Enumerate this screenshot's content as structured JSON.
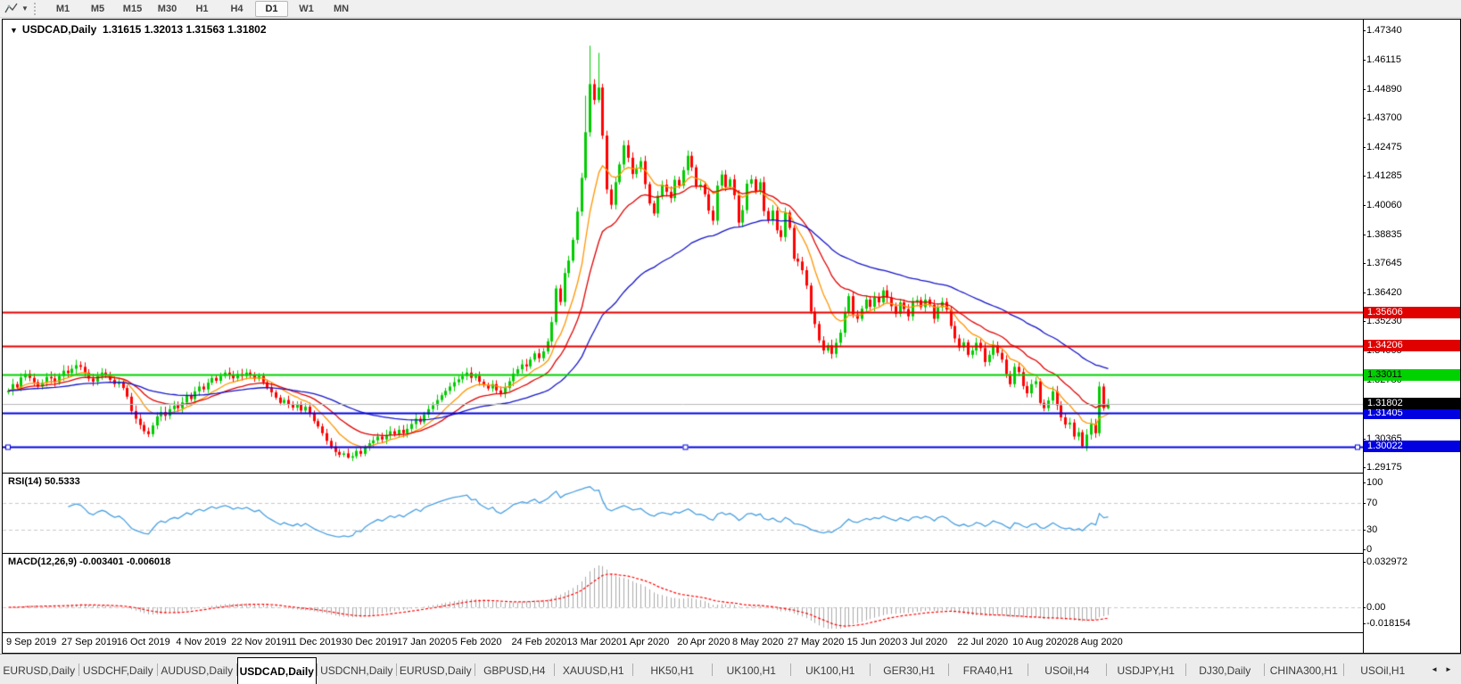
{
  "toolbar": {
    "timeframes": [
      {
        "label": "M1",
        "active": false
      },
      {
        "label": "M5",
        "active": false
      },
      {
        "label": "M15",
        "active": false
      },
      {
        "label": "M30",
        "active": false
      },
      {
        "label": "H1",
        "active": false
      },
      {
        "label": "H4",
        "active": false
      },
      {
        "label": "D1",
        "active": true
      },
      {
        "label": "W1",
        "active": false
      },
      {
        "label": "MN",
        "active": false
      }
    ]
  },
  "title_bar": {
    "dropdown_glyph": "▼",
    "symbol": "USDCAD,Daily",
    "open": "1.31615",
    "high": "1.32013",
    "low": "1.31563",
    "close": "1.31802"
  },
  "indicators": {
    "rsi_name": "RSI(14)",
    "rsi_value": "50.5333",
    "macd_name": "MACD(12,26,9)",
    "macd_values": "-0.003401 -0.006018"
  },
  "colors": {
    "candle_up": "#00cc00",
    "candle_down": "#ff0000",
    "ma_fast": "#ff9500",
    "ma_mid": "#e00000",
    "ma_slow": "#1414c8",
    "rsi_line": "#4aa0e0",
    "macd_hist": "#aaaaaa",
    "macd_signal": "#ff0000",
    "level_dash": "#c8c8c8",
    "current_price_line": "#b8b8b8"
  },
  "chart_data": {
    "type": "candlestick",
    "symbol": "USDCAD",
    "timeframe": "Daily",
    "quote": {
      "open": 1.31615,
      "high": 1.32013,
      "low": 1.31563,
      "close": 1.31802
    },
    "price_axis_ticks": [
      1.4734,
      1.46115,
      1.4489,
      1.437,
      1.42475,
      1.41285,
      1.4006,
      1.38835,
      1.37645,
      1.3642,
      1.3523,
      1.34005,
      1.3278,
      1.30365,
      1.29175
    ],
    "rsi_axis_ticks": [
      100,
      70,
      30,
      0
    ],
    "rsi_levels": [
      70,
      30
    ],
    "macd_axis_ticks": [
      0.032972,
      0.0,
      -0.018154
    ],
    "price_range": {
      "top": 1.4734,
      "bottom": 1.29175
    },
    "x_labels": [
      {
        "t": "9 Sep 2019",
        "i": 0
      },
      {
        "t": "27 Sep 2019",
        "i": 13
      },
      {
        "t": "16 Oct 2019",
        "i": 26
      },
      {
        "t": "4 Nov 2019",
        "i": 40
      },
      {
        "t": "22 Nov 2019",
        "i": 53
      },
      {
        "t": "11 Dec 2019",
        "i": 66
      },
      {
        "t": "30 Dec 2019",
        "i": 79
      },
      {
        "t": "17 Jan 2020",
        "i": 92
      },
      {
        "t": "5 Feb 2020",
        "i": 105
      },
      {
        "t": "24 Feb 2020",
        "i": 119
      },
      {
        "t": "13 Mar 2020",
        "i": 132
      },
      {
        "t": "1 Apr 2020",
        "i": 145
      },
      {
        "t": "20 Apr 2020",
        "i": 158
      },
      {
        "t": "8 May 2020",
        "i": 171
      },
      {
        "t": "27 May 2020",
        "i": 184
      },
      {
        "t": "15 Jun 2020",
        "i": 198
      },
      {
        "t": "3 Jul 2020",
        "i": 211
      },
      {
        "t": "22 Jul 2020",
        "i": 224
      },
      {
        "t": "10 Aug 2020",
        "i": 237
      },
      {
        "t": "28 Aug 2020",
        "i": 250
      }
    ],
    "first_open": 1.3228,
    "closes": [
      1.3235,
      1.3262,
      1.3248,
      1.329,
      1.3305,
      1.3288,
      1.327,
      1.3252,
      1.3268,
      1.3292,
      1.3286,
      1.327,
      1.3296,
      1.3318,
      1.3308,
      1.3326,
      1.3341,
      1.3334,
      1.331,
      1.3285,
      1.3272,
      1.3296,
      1.331,
      1.3302,
      1.328,
      1.3262,
      1.327,
      1.3246,
      1.321,
      1.315,
      1.3118,
      1.3092,
      1.3066,
      1.3054,
      1.309,
      1.3128,
      1.3146,
      1.313,
      1.3158,
      1.3172,
      1.3162,
      1.3186,
      1.3214,
      1.32,
      1.3232,
      1.3252,
      1.324,
      1.3268,
      1.3288,
      1.3276,
      1.3296,
      1.331,
      1.33,
      1.3286,
      1.3304,
      1.3296,
      1.331,
      1.3298,
      1.3284,
      1.3296,
      1.327,
      1.3248,
      1.3228,
      1.3206,
      1.3184,
      1.3196,
      1.3178,
      1.3164,
      1.3176,
      1.3152,
      1.3168,
      1.314,
      1.3108,
      1.3086,
      1.3058,
      1.3026,
      1.3002,
      1.298,
      1.2968,
      1.2974,
      1.2956,
      1.2962,
      1.2984,
      1.2972,
      1.2998,
      1.3016,
      1.3028,
      1.3044,
      1.3032,
      1.305,
      1.3066,
      1.3054,
      1.3072,
      1.3058,
      1.3076,
      1.3096,
      1.3118,
      1.3104,
      1.3136,
      1.3158,
      1.3174,
      1.3196,
      1.3216,
      1.3234,
      1.3252,
      1.327,
      1.3282,
      1.3296,
      1.331,
      1.3288,
      1.3296,
      1.3272,
      1.3258,
      1.3244,
      1.3262,
      1.3236,
      1.3224,
      1.3246,
      1.3274,
      1.3306,
      1.3324,
      1.3344,
      1.3336,
      1.3364,
      1.339,
      1.337,
      1.3398,
      1.344,
      1.352,
      1.366,
      1.3604,
      1.3724,
      1.3776,
      1.3862,
      1.398,
      1.412,
      1.431,
      1.451,
      1.4444,
      1.4496,
      1.4296,
      1.4072,
      1.4008,
      1.4102,
      1.4176,
      1.4256,
      1.4204,
      1.4136,
      1.4158,
      1.419,
      1.4094,
      1.4014,
      1.3972,
      1.4046,
      1.4092,
      1.4062,
      1.4036,
      1.4112,
      1.4088,
      1.4152,
      1.4212,
      1.4164,
      1.4084,
      1.4092,
      1.4052,
      1.3984,
      1.3942,
      1.4088,
      1.4134,
      1.4082,
      1.4114,
      1.4048,
      1.3934,
      1.3986,
      1.4096,
      1.4114,
      1.4064,
      1.4102,
      1.3982,
      1.3944,
      1.3984,
      1.3902,
      1.3874,
      1.3976,
      1.3912,
      1.3784,
      1.3772,
      1.3736,
      1.3672,
      1.3564,
      1.3512,
      1.3444,
      1.3402,
      1.3424,
      1.3388,
      1.3434,
      1.3476,
      1.3562,
      1.3628,
      1.3552,
      1.3534,
      1.3576,
      1.3614,
      1.3584,
      1.3624,
      1.3602,
      1.3652,
      1.3622,
      1.3586,
      1.3554,
      1.3602,
      1.3574,
      1.3544,
      1.3602,
      1.3612,
      1.3582,
      1.3614,
      1.3592,
      1.3534,
      1.3582,
      1.3604,
      1.3572,
      1.3504,
      1.3452,
      1.3414,
      1.3436,
      1.3384,
      1.3402,
      1.3434,
      1.3412,
      1.3354,
      1.3384,
      1.3424,
      1.3392,
      1.3364,
      1.3304,
      1.3262,
      1.3334,
      1.3312,
      1.3254,
      1.3224,
      1.3262,
      1.3274,
      1.3184,
      1.3162,
      1.3194,
      1.3232,
      1.3174,
      1.3124,
      1.3094,
      1.3102,
      1.3044,
      1.3062,
      1.3004,
      1.3052,
      1.3096,
      1.3058,
      1.3252,
      1.3162,
      1.31802
    ],
    "wick_overrides": {
      "33": {
        "l": 1.3042
      },
      "80": {
        "l": 1.2952
      },
      "136": {
        "h": 1.4462
      },
      "137": {
        "h": 1.467
      },
      "139": {
        "h": 1.464
      },
      "253": {
        "l": 1.2996
      },
      "257": {
        "h": 1.3272
      }
    },
    "moving_averages": [
      {
        "name": "fast-ma",
        "period": 10,
        "color": "#ff9500"
      },
      {
        "name": "mid-ma",
        "period": 21,
        "color": "#e00000"
      },
      {
        "name": "slow-ma",
        "period": 55,
        "color": "#1414c8"
      }
    ],
    "hlines": [
      {
        "price": 1.35606,
        "label": "1.35606",
        "color": "#e00000",
        "label_bg": "#e00000",
        "label_fg": "#ffffff",
        "selected": false
      },
      {
        "price": 1.34206,
        "label": "1.34206",
        "color": "#e00000",
        "label_bg": "#e00000",
        "label_fg": "#ffffff",
        "selected": false
      },
      {
        "price": 1.33011,
        "label": "1.33011",
        "color": "#00d200",
        "label_bg": "#00d200",
        "label_fg": "#000000",
        "selected": false
      },
      {
        "price": 1.31405,
        "label": "1.31405",
        "color": "#0000e0",
        "label_bg": "#0000e0",
        "label_fg": "#ffffff",
        "selected": false
      },
      {
        "price": 1.30022,
        "label": "1.30022",
        "color": "#0000e0",
        "label_bg": "#0000e0",
        "label_fg": "#ffffff",
        "selected": true
      }
    ],
    "current_price": {
      "price": 1.31802,
      "label": "1.31802",
      "label_bg": "#000000",
      "label_fg": "#ffffff"
    }
  },
  "tabs": {
    "items": [
      {
        "label": "EURUSD,Daily",
        "active": false
      },
      {
        "label": "USDCHF,Daily",
        "active": false
      },
      {
        "label": "AUDUSD,Daily",
        "active": false
      },
      {
        "label": "USDCAD,Daily",
        "active": true
      },
      {
        "label": "USDCNH,Daily",
        "active": false
      },
      {
        "label": "EURUSD,Daily",
        "active": false
      },
      {
        "label": "GBPUSD,H4",
        "active": false
      },
      {
        "label": "XAUUSD,H1",
        "active": false
      },
      {
        "label": "HK50,H1",
        "active": false
      },
      {
        "label": "UK100,H1",
        "active": false
      },
      {
        "label": "UK100,H1",
        "active": false
      },
      {
        "label": "GER30,H1",
        "active": false
      },
      {
        "label": "FRA40,H1",
        "active": false
      },
      {
        "label": "USOil,H4",
        "active": false
      },
      {
        "label": "USDJPY,H1",
        "active": false
      },
      {
        "label": "DJ30,Daily",
        "active": false
      },
      {
        "label": "CHINA300,H1",
        "active": false
      },
      {
        "label": "USOil,H1",
        "active": false
      }
    ],
    "scroll_left": "◄",
    "scroll_right": "►"
  }
}
